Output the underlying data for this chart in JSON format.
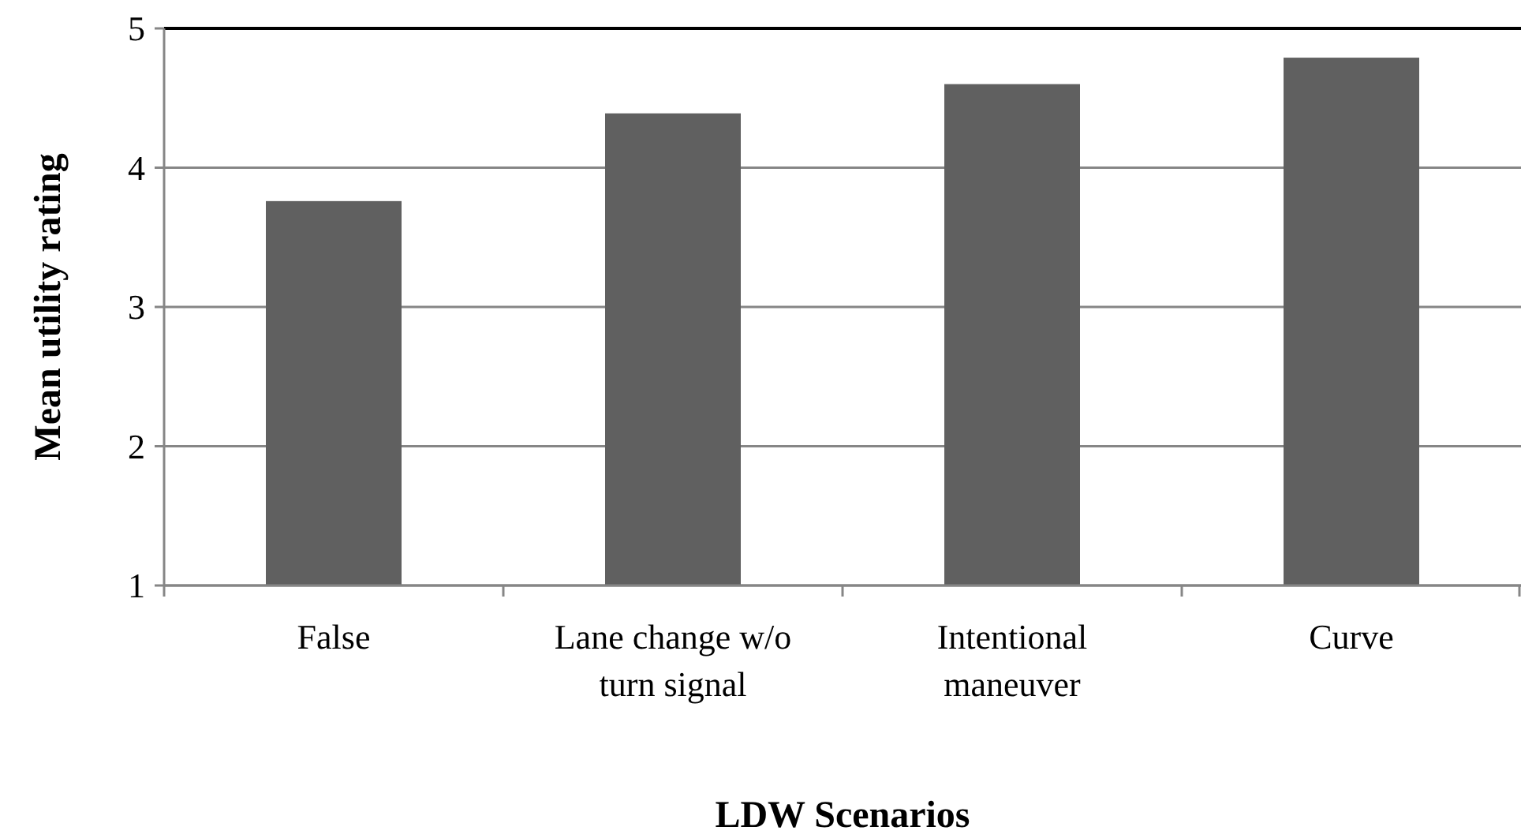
{
  "chart_data": {
    "type": "bar",
    "xlabel": "LDW Scenarios",
    "ylabel": "Mean utility rating",
    "categories": [
      "False",
      "Lane change w/o turn signal",
      "Intentional maneuver",
      "Curve"
    ],
    "values": [
      3.76,
      4.39,
      4.6,
      4.79
    ],
    "color": "#606060",
    "ylim": [
      1,
      5
    ],
    "yticks": [
      1,
      2,
      3,
      4,
      5
    ],
    "grid": "y"
  }
}
